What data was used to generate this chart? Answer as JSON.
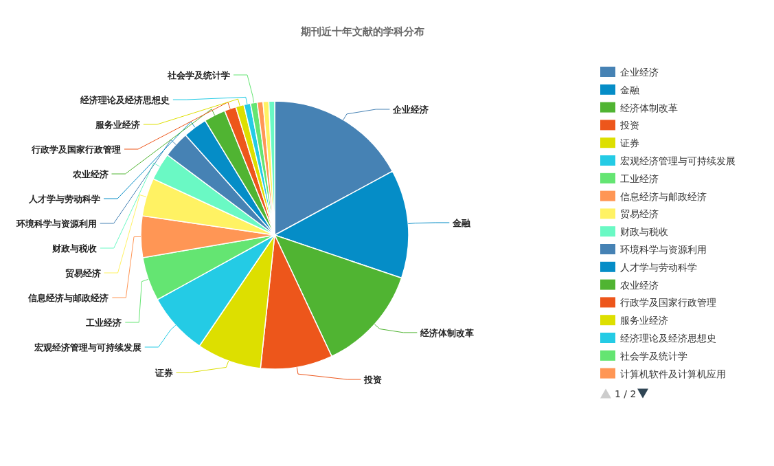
{
  "chart_data": {
    "type": "pie",
    "title": "期刊近十年文献的学科分布",
    "legend": "right",
    "annotations": [
      "1 / 2"
    ],
    "categories": [
      "企业经济",
      "金融",
      "经济体制改革",
      "投资",
      "证券",
      "宏观经济管理与可持续发展",
      "工业经济",
      "信息经济与邮政经济",
      "贸易经济",
      "财政与税收",
      "环境科学与资源利用",
      "人才学与劳动科学",
      "农业经济",
      "行政学及国家行政管理",
      "服务业经济",
      "经济理论及经济思想史",
      "社会学及统计学",
      "计算机软件及计算机应用",
      null,
      null
    ],
    "values": [
      17.1,
      13.1,
      12.8,
      8.7,
      7.8,
      7.5,
      5.3,
      5.0,
      4.6,
      3.3,
      3.2,
      2.9,
      2.6,
      1.4,
      1.0,
      0.8,
      0.8,
      0.7,
      0.7,
      0.7
    ],
    "colors": [
      "#4682b4",
      "#058dc7",
      "#50b432",
      "#ed561b",
      "#dddf00",
      "#24cbe5",
      "#64e572",
      "#ff9655",
      "#fff263",
      "#6af9c4",
      "#4682b4",
      "#058dc7",
      "#50b432",
      "#ed561b",
      "#dddf00",
      "#24cbe5",
      "#64e572",
      "#ff9655",
      "#fff263",
      "#6af9c4"
    ]
  }
}
